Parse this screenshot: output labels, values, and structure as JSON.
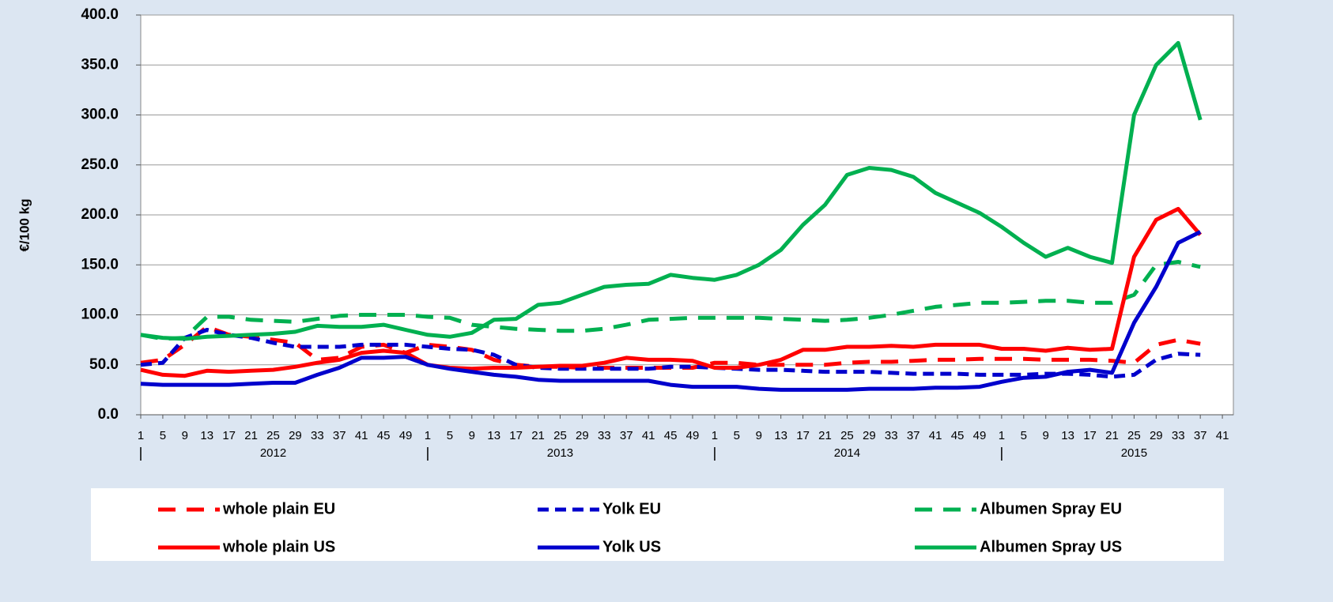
{
  "chart_data": {
    "type": "line",
    "y_label": "€/100 kg",
    "categories": [
      "1",
      "5",
      "9",
      "13",
      "17",
      "21",
      "25",
      "29",
      "33",
      "37",
      "41",
      "45",
      "49",
      "1",
      "5",
      "9",
      "13",
      "17",
      "21",
      "25",
      "29",
      "33",
      "37",
      "41",
      "45",
      "49",
      "1",
      "5",
      "9",
      "13",
      "17",
      "21",
      "25",
      "29",
      "33",
      "37",
      "41",
      "45",
      "49",
      "1",
      "5",
      "9",
      "13",
      "17",
      "21",
      "25",
      "29",
      "33",
      "37",
      "41"
    ],
    "years": [
      "2012",
      "2013",
      "2014",
      "2015"
    ],
    "ylim": [
      0,
      400
    ],
    "yticks": [
      {
        "value": 0,
        "label": "0.0"
      },
      {
        "value": 50,
        "label": "50.0"
      },
      {
        "value": 100,
        "label": "100.0"
      },
      {
        "value": 150,
        "label": "150.0"
      },
      {
        "value": 200,
        "label": "200.0"
      },
      {
        "value": 250,
        "label": "250.0"
      },
      {
        "value": 300,
        "label": "300.0"
      },
      {
        "value": 350,
        "label": "350.0"
      },
      {
        "value": 400,
        "label": "400.0"
      }
    ],
    "grid": true,
    "series": [
      {
        "name": "whole plain EU",
        "color": "#ff0000",
        "style": "dashed",
        "values": [
          52,
          55,
          70,
          88,
          80,
          78,
          75,
          72,
          55,
          57,
          68,
          70,
          62,
          70,
          68,
          65,
          55,
          50,
          48,
          48,
          47,
          47,
          47,
          47,
          47,
          47,
          52,
          52,
          50,
          50,
          50,
          50,
          52,
          53,
          53,
          54,
          55,
          55,
          56,
          56,
          56,
          55,
          55,
          55,
          54,
          52,
          70,
          75,
          71,
          null
        ]
      },
      {
        "name": "Yolk EU",
        "color": "#0000cc",
        "style": "dashed-short",
        "values": [
          50,
          52,
          77,
          85,
          80,
          77,
          72,
          68,
          68,
          68,
          70,
          70,
          70,
          68,
          66,
          65,
          60,
          50,
          47,
          46,
          46,
          46,
          46,
          46,
          48,
          48,
          47,
          46,
          45,
          45,
          44,
          43,
          43,
          43,
          42,
          41,
          41,
          41,
          40,
          40,
          40,
          41,
          41,
          40,
          38,
          40,
          55,
          61,
          60,
          null
        ]
      },
      {
        "name": "Albumen Spray EU",
        "color": "#00b050",
        "style": "dashed",
        "values": [
          80,
          76,
          77,
          98,
          98,
          95,
          94,
          93,
          96,
          99,
          100,
          100,
          100,
          98,
          97,
          90,
          88,
          86,
          85,
          84,
          84,
          86,
          90,
          95,
          96,
          97,
          97,
          97,
          97,
          96,
          95,
          94,
          95,
          97,
          100,
          104,
          108,
          110,
          112,
          112,
          113,
          114,
          114,
          112,
          112,
          120,
          150,
          153,
          148,
          null
        ]
      },
      {
        "name": "whole plain US",
        "color": "#ff0000",
        "style": "solid",
        "values": [
          45,
          40,
          39,
          44,
          43,
          44,
          45,
          48,
          52,
          55,
          62,
          64,
          62,
          50,
          47,
          46,
          47,
          47,
          48,
          49,
          49,
          52,
          57,
          55,
          55,
          54,
          47,
          47,
          50,
          55,
          65,
          65,
          68,
          68,
          69,
          68,
          70,
          70,
          70,
          66,
          66,
          64,
          67,
          65,
          66,
          158,
          195,
          206,
          180,
          null
        ]
      },
      {
        "name": "Yolk US",
        "color": "#0000cc",
        "style": "solid",
        "values": [
          31,
          30,
          30,
          30,
          30,
          31,
          32,
          32,
          40,
          47,
          57,
          57,
          58,
          50,
          46,
          43,
          40,
          38,
          35,
          34,
          34,
          34,
          34,
          34,
          30,
          28,
          28,
          28,
          26,
          25,
          25,
          25,
          25,
          26,
          26,
          26,
          27,
          27,
          28,
          33,
          37,
          38,
          43,
          45,
          42,
          92,
          128,
          172,
          183,
          null
        ]
      },
      {
        "name": "Albumen Spray US",
        "color": "#00b050",
        "style": "solid",
        "values": [
          80,
          77,
          76,
          78,
          79,
          80,
          81,
          83,
          89,
          88,
          88,
          90,
          85,
          80,
          78,
          82,
          95,
          96,
          110,
          112,
          120,
          128,
          130,
          131,
          140,
          137,
          135,
          140,
          150,
          165,
          190,
          210,
          240,
          247,
          245,
          238,
          222,
          212,
          202,
          188,
          172,
          158,
          167,
          158,
          152,
          300,
          350,
          372,
          295,
          null
        ]
      }
    ]
  }
}
